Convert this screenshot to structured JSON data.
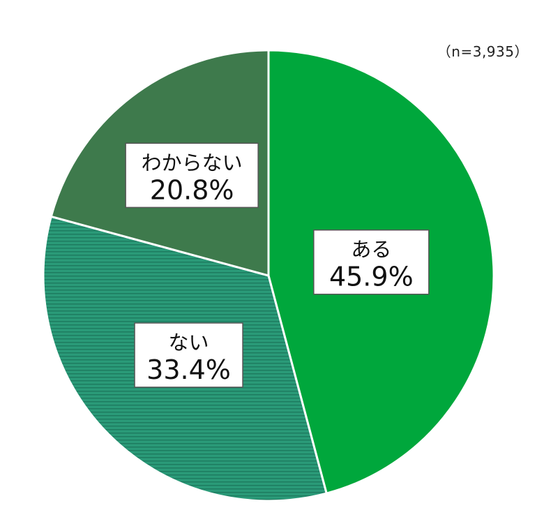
{
  "chart_data": {
    "type": "pie",
    "sample_size": "（n=3,935）",
    "slices": [
      {
        "label": "ある",
        "value": 45.9,
        "value_label": "45.9%",
        "color": "#00a73c",
        "pattern": "solid"
      },
      {
        "label": "ない",
        "value": 33.4,
        "value_label": "33.4%",
        "color": "#2a9a78",
        "pattern": "horizontal-lines"
      },
      {
        "label": "わからない",
        "value": 20.8,
        "value_label": "20.8%",
        "color": "#3e7a4c",
        "pattern": "solid"
      }
    ],
    "start_angle": "12 o'clock",
    "direction": "clockwise"
  }
}
